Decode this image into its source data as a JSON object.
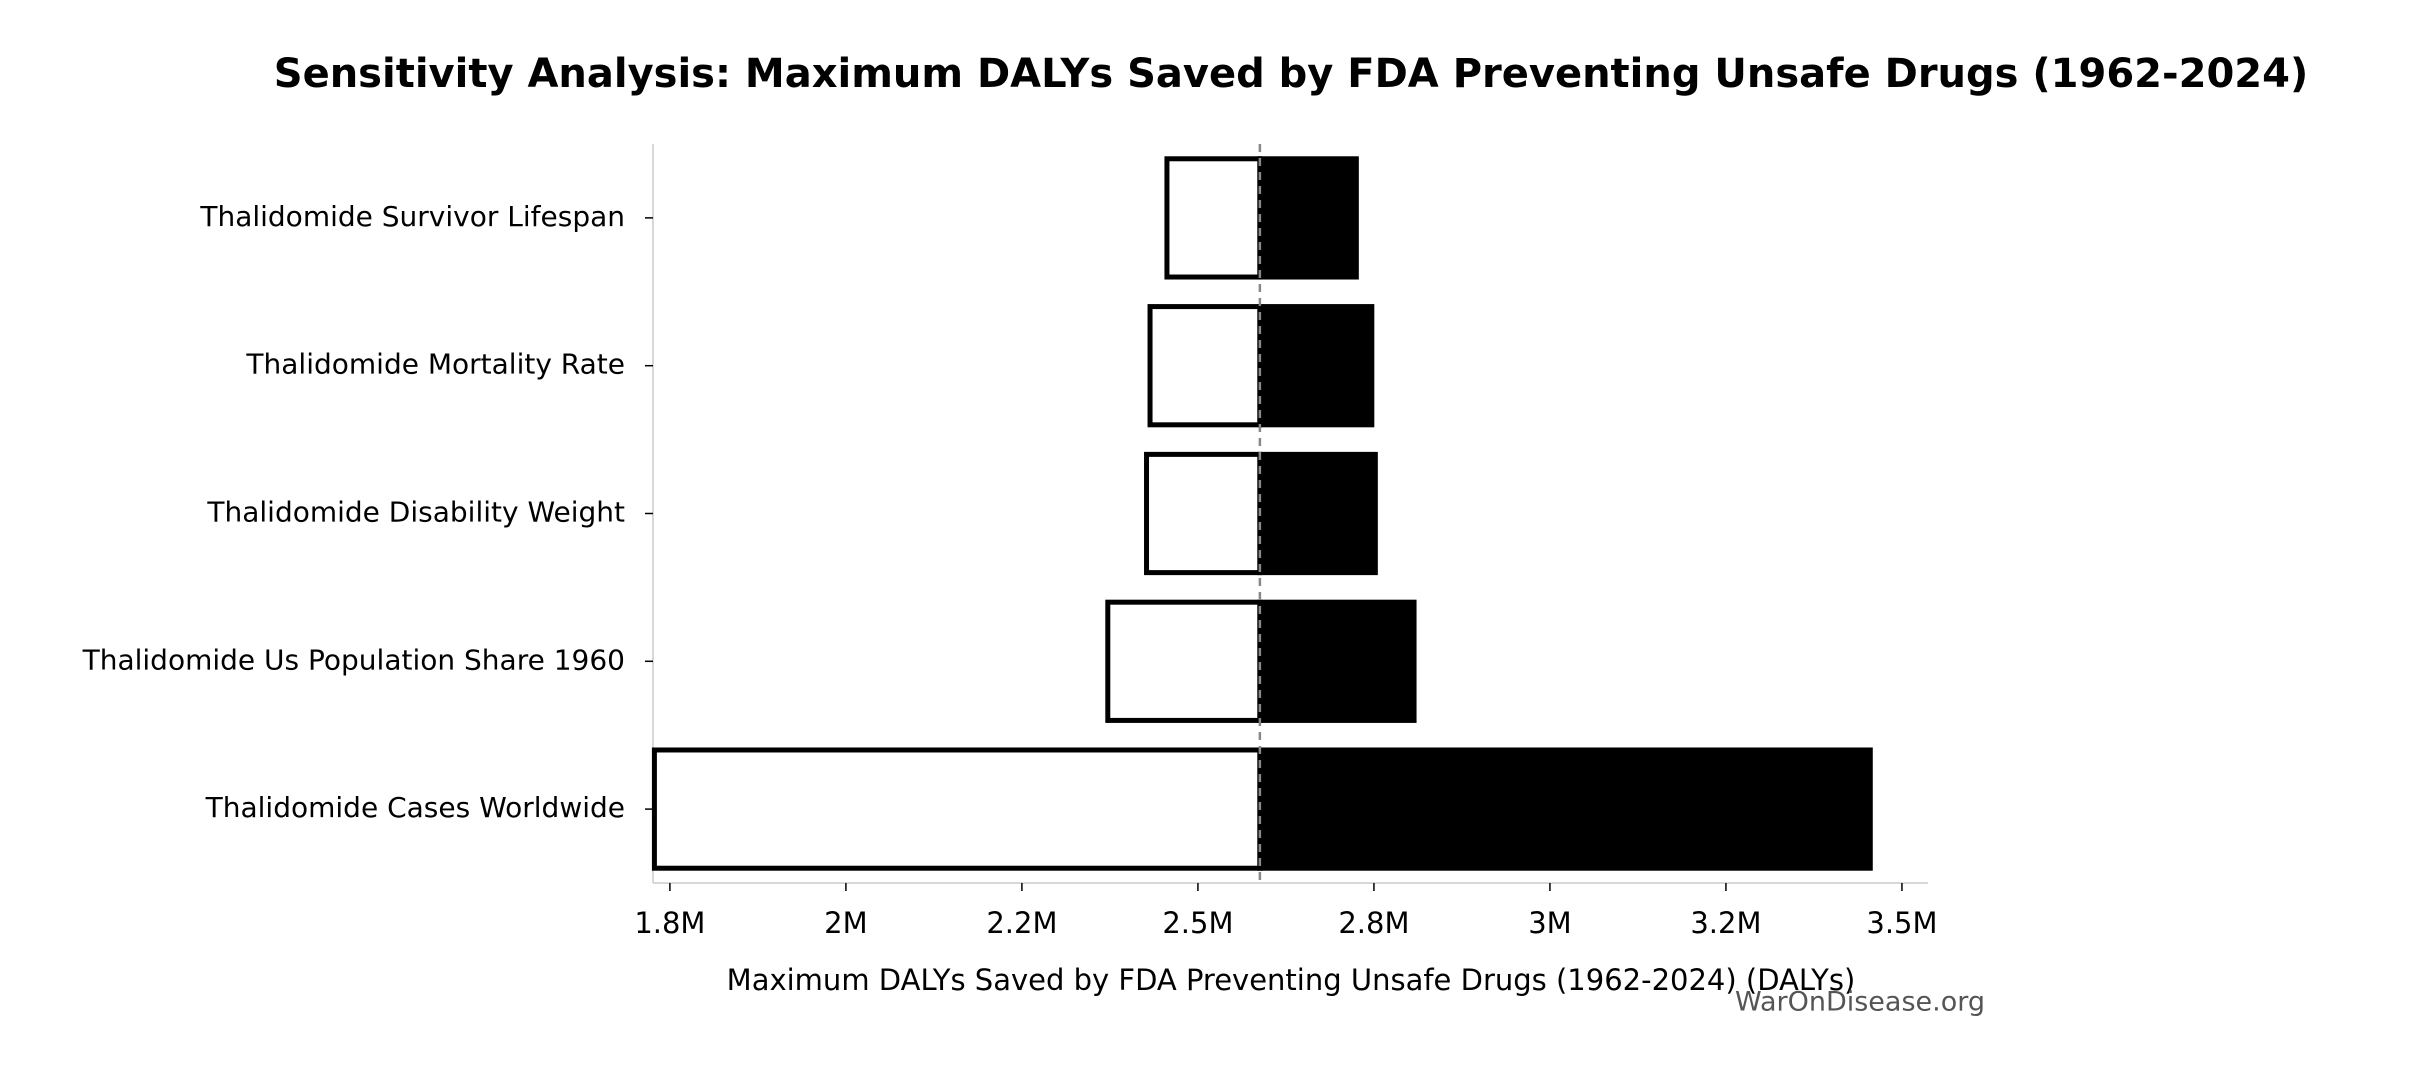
{
  "chart_data": {
    "type": "tornado",
    "title": "Sensitivity Analysis: Maximum DALYs Saved by FDA Preventing Unsafe Drugs (1962-2024)",
    "xlabel": "Maximum DALYs Saved by FDA Preventing Unsafe Drugs (1962-2024) (DALYs)",
    "watermark": "WarOnDisease.org",
    "categories": [
      "Thalidomide Survivor Lifespan",
      "Thalidomide Mortality Rate",
      "Thalidomide Disability Weight",
      "Thalidomide Us Population Share 1960",
      "Thalidomide Cases Worldwide"
    ],
    "baseline": 2588000,
    "series": [
      {
        "color": "#ffffff",
        "edgecolor": "#000000",
        "values": [
          2456000,
          2432000,
          2427000,
          2372000,
          1728000
        ]
      },
      {
        "color": "#000000",
        "edgecolor": "#000000",
        "values": [
          2725000,
          2747000,
          2752000,
          2807000,
          3455000
        ]
      }
    ],
    "xlim": [
      1726000,
      3537000
    ],
    "xticks": [
      {
        "value": 1750000,
        "label": "1.8M"
      },
      {
        "value": 2000000,
        "label": "2M"
      },
      {
        "value": 2250000,
        "label": "2.2M"
      },
      {
        "value": 2500000,
        "label": "2.5M"
      },
      {
        "value": 2750000,
        "label": "2.8M"
      },
      {
        "value": 3000000,
        "label": "3M"
      },
      {
        "value": 3250000,
        "label": "3.2M"
      },
      {
        "value": 3500000,
        "label": "3.5M"
      }
    ],
    "grid": false
  }
}
